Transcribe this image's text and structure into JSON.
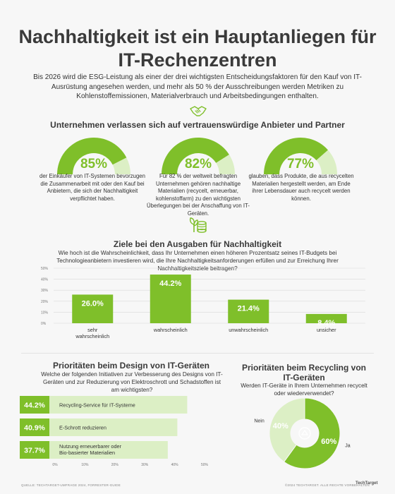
{
  "title_line1": "Nachhaltigkeit ist ein Hauptanliegen für",
  "title_line2": "IT-Rechenzentren",
  "intro": "Bis 2026 wird die ESG-Leistung als einer der drei wichtigsten Entscheidungsfaktoren für den Kauf von IT-Ausrüstung angesehen werden, und mehr als 50 % der Ausschreibungen werden Metriken zu Kohlenstoffemissionen, Materialverbrauch und Arbeitsbedingungen enthalten.",
  "section1": {
    "heading": "Unternehmen verlassen sich auf vertrauenswürdige Anbieter und Partner",
    "icon": "handshake-icon",
    "gauges": [
      {
        "value": 85,
        "label": "85%",
        "text": "der Einkäufer von IT-Systemen bevorzugen die Zusammenarbeit mit oder den Kauf bei Anbietern, die sich der Nachhaltigkeit verpflichtet haben."
      },
      {
        "value": 82,
        "label": "82%",
        "text": "Für 82 % der weltweit befragten Unternehmen gehören nachhaltige Materialien (recycelt, erneuerbar, kohlenstoffarm) zu den wichtigsten Überlegungen bei der Anschaffung von IT-Geräten."
      },
      {
        "value": 77,
        "label": "77%",
        "text": "glauben, dass Produkte, die aus recycelten Materialien hergestellt werden, am Ende ihrer Lebensdauer auch recycelt werden können."
      }
    ]
  },
  "section2": {
    "icon": "money-plant-icon",
    "heading": "Ziele bei den Ausgaben für Nachhaltigkeit",
    "question": "Wie hoch ist die Wahrscheinlichkeit, dass Ihr Unternehmen einen höheren Prozentsatz seines IT-Budgets bei Technologieanbietern investieren wird, die Ihre Nachhaltigkeitsanforderungen erfüllen und zur Erreichung Ihrer Nachhaltigkeitsziele beitragen?"
  },
  "section3": {
    "heading_line1": "Prioritäten beim Design von IT-Geräten",
    "question": "Welche der folgenden Initiativen zur Verbesserung des Designs von IT-Geräten und zur Reduzierung von Elektroschrott und Schadstoffen ist am wichtigsten?"
  },
  "section4": {
    "heading_line1": "Prioritäten beim Recycling von",
    "heading_line2": "IT-Geräten",
    "question": "Werden IT-Geräte in Ihrem Unternehmen recycelt oder wiederverwendet?",
    "icon": "recycle-icon"
  },
  "footer_left": "QUELLE: TECHTARGET-UMFRAGE 2024, FORRESTER-GUIDE",
  "footer_right": "©2024 TECHTARGET. ALLE RECHTE VORBEHALTEN",
  "footer_brand": "TechTarget",
  "colors": {
    "green": "#7fbf2a",
    "light_green": "#c8e6a4",
    "pale_green": "#dcefc5"
  },
  "chart_data": [
    {
      "type": "bar",
      "categories": [
        "sehr wahrscheinlich",
        "wahrscheinlich",
        "unwahrscheinlich",
        "unsicher"
      ],
      "values": [
        26.0,
        44.2,
        21.4,
        8.4
      ],
      "value_labels": [
        "26.0%",
        "44.2%",
        "21.4%",
        "8.4%"
      ],
      "ylim": [
        0,
        50
      ],
      "yticks": [
        "0%",
        "10%",
        "20%",
        "30%",
        "40%",
        "50%"
      ],
      "grid": true
    },
    {
      "type": "bar",
      "orientation": "horizontal",
      "categories": [
        "Recycling-Service für IT-Systeme",
        "E-Schrott reduzieren",
        "Nutzung erneuerbarer oder Bio-basierter Materialien"
      ],
      "values": [
        44.2,
        40.9,
        37.7
      ],
      "value_labels": [
        "44.2%",
        "40.9%",
        "37.7%"
      ],
      "xlim": [
        0,
        50
      ],
      "xticks": [
        "0%",
        "10%",
        "20%",
        "30%",
        "40%",
        "50%"
      ]
    },
    {
      "type": "pie",
      "labels": [
        "Ja",
        "Nein"
      ],
      "values": [
        60,
        40
      ],
      "value_labels": [
        "60%",
        "40%"
      ]
    }
  ]
}
